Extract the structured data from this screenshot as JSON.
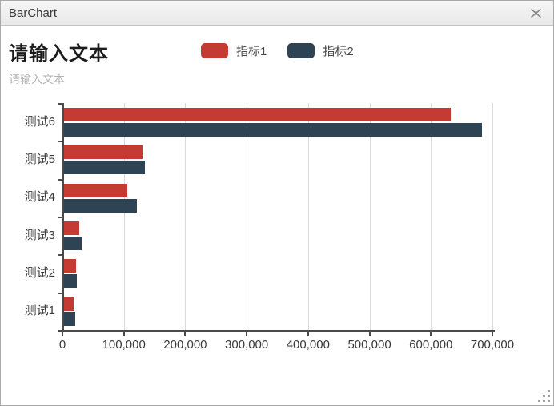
{
  "window": {
    "title": "BarChart"
  },
  "chart_data": {
    "type": "bar",
    "orientation": "horizontal",
    "title": "请输入文本",
    "subtitle": "请输入文本",
    "categories": [
      "测试6",
      "测试5",
      "测试4",
      "测试3",
      "测试2",
      "测试1"
    ],
    "series": [
      {
        "name": "指标1",
        "color": "#c43b33",
        "values": [
          630000,
          128000,
          103000,
          25000,
          19000,
          15000
        ]
      },
      {
        "name": "指标2",
        "color": "#2e4454",
        "values": [
          680000,
          132000,
          119000,
          29000,
          21000,
          18000
        ]
      }
    ],
    "xlim": [
      0,
      700000
    ],
    "xticks": [
      0,
      100000,
      200000,
      300000,
      400000,
      500000,
      600000,
      700000
    ],
    "xtick_labels": [
      "0",
      "100,000",
      "200,000",
      "300,000",
      "400,000",
      "500,000",
      "600,000",
      "700,000"
    ],
    "grid": "vertical",
    "legend_position": "top-center",
    "axis_color": "#4a4a4a",
    "grid_color": "#d9d9d9",
    "tick_label_color": "#3a3a3a",
    "title_color": "#1c1c1c",
    "subtitle_color": "#b3b3b3"
  }
}
